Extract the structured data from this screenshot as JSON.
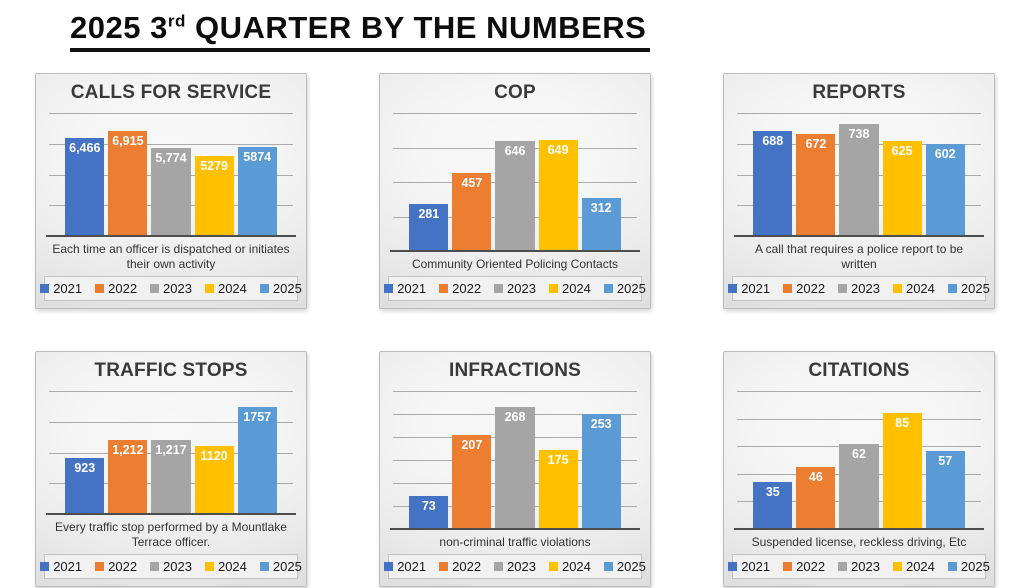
{
  "title": {
    "prefix": "2025 3",
    "superscript": "rd",
    "suffix": " QUARTER BY THE NUMBERS"
  },
  "series_years": [
    "2021",
    "2022",
    "2023",
    "2024",
    "2025"
  ],
  "series_colors": [
    "#4472C4",
    "#ED7D31",
    "#A5A5A5",
    "#FFC000",
    "#5B9BD5"
  ],
  "chart_data": [
    {
      "type": "bar",
      "title": "CALLS FOR SERVICE",
      "caption": "Each time an officer is dispatched or initiates their own activity",
      "categories": [
        "2021",
        "2022",
        "2023",
        "2024",
        "2025"
      ],
      "values": [
        6466,
        6915,
        5774,
        5279,
        5874
      ],
      "labels": [
        "6,466",
        "6,915",
        "5,774",
        "5279",
        "5874"
      ],
      "xlabel": "",
      "ylabel": "",
      "ylim": [
        0,
        8000
      ],
      "grid_step": 2000,
      "grid": true,
      "legend_position": "bottom"
    },
    {
      "type": "bar",
      "title": "COP",
      "caption": "Community Oriented Policing Contacts",
      "categories": [
        "2021",
        "2022",
        "2023",
        "2024",
        "2025"
      ],
      "values": [
        281,
        457,
        646,
        649,
        312
      ],
      "labels": [
        "281",
        "457",
        "646",
        "649",
        "312"
      ],
      "xlabel": "",
      "ylabel": "",
      "ylim": [
        0,
        800
      ],
      "grid_step": 200,
      "grid": true,
      "legend_position": "bottom"
    },
    {
      "type": "bar",
      "title": "REPORTS",
      "caption": "A call that requires a police report to be written",
      "categories": [
        "2021",
        "2022",
        "2023",
        "2024",
        "2025"
      ],
      "values": [
        688,
        672,
        738,
        625,
        602
      ],
      "labels": [
        "688",
        "672",
        "738",
        "625",
        "602"
      ],
      "xlabel": "",
      "ylabel": "",
      "ylim": [
        0,
        800
      ],
      "grid_step": 200,
      "grid": true,
      "legend_position": "bottom"
    },
    {
      "type": "bar",
      "title": "TRAFFIC STOPS",
      "caption": "Every traffic stop performed by a Mountlake Terrace officer.",
      "categories": [
        "2021",
        "2022",
        "2023",
        "2024",
        "2025"
      ],
      "values": [
        923,
        1212,
        1217,
        1120,
        1757
      ],
      "labels": [
        "923",
        "1,212",
        "1,217",
        "1120",
        "1757"
      ],
      "xlabel": "",
      "ylabel": "",
      "ylim": [
        0,
        2000
      ],
      "grid_step": 500,
      "grid": true,
      "legend_position": "bottom"
    },
    {
      "type": "bar",
      "title": "INFRACTIONS",
      "caption": "non-criminal traffic violations",
      "categories": [
        "2021",
        "2022",
        "2023",
        "2024",
        "2025"
      ],
      "values": [
        73,
        207,
        268,
        175,
        253
      ],
      "labels": [
        "73",
        "207",
        "268",
        "175",
        "253"
      ],
      "xlabel": "",
      "ylabel": "",
      "ylim": [
        0,
        300
      ],
      "grid_step": 50,
      "grid": true,
      "legend_position": "bottom"
    },
    {
      "type": "bar",
      "title": "CITATIONS",
      "caption": "Suspended license, reckless driving, Etc",
      "categories": [
        "2021",
        "2022",
        "2023",
        "2024",
        "2025"
      ],
      "values": [
        35,
        46,
        62,
        85,
        57
      ],
      "labels": [
        "35",
        "46",
        "62",
        "85",
        "57"
      ],
      "xlabel": "",
      "ylabel": "",
      "ylim": [
        0,
        100
      ],
      "grid_step": 20,
      "grid": true,
      "legend_position": "bottom"
    }
  ]
}
